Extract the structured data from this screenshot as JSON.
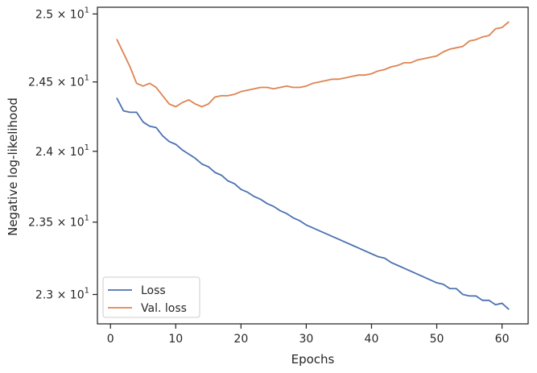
{
  "chart_data": {
    "type": "line",
    "xlabel": "Epochs",
    "ylabel": "Negative log-likelihood",
    "xlim": [
      -2.0,
      64.0
    ],
    "ylim": [
      22.8,
      25.05
    ],
    "y_scale": "log",
    "grid": false,
    "legend_position": "lower-left",
    "x_ticks": [
      0,
      10,
      20,
      30,
      40,
      50,
      60
    ],
    "x_tick_labels": [
      "0",
      "10",
      "20",
      "30",
      "40",
      "50",
      "60"
    ],
    "y_ticks": [
      {
        "value": 25.0,
        "mantissa": "2.5",
        "exponent": "1"
      },
      {
        "value": 24.5,
        "mantissa": "2.45",
        "exponent": "1"
      },
      {
        "value": 24.0,
        "mantissa": "2.4",
        "exponent": "1"
      },
      {
        "value": 23.5,
        "mantissa": "2.35",
        "exponent": "1"
      },
      {
        "value": 23.0,
        "mantissa": "2.3",
        "exponent": "1"
      }
    ],
    "y_tick_times": "×",
    "y_tick_base": "10",
    "x": [
      1,
      2,
      3,
      4,
      5,
      6,
      7,
      8,
      9,
      10,
      11,
      12,
      13,
      14,
      15,
      16,
      17,
      18,
      19,
      20,
      21,
      22,
      23,
      24,
      25,
      26,
      27,
      28,
      29,
      30,
      31,
      32,
      33,
      34,
      35,
      36,
      37,
      38,
      39,
      40,
      41,
      42,
      43,
      44,
      45,
      46,
      47,
      48,
      49,
      50,
      51,
      52,
      53,
      54,
      55,
      56,
      57,
      58,
      59,
      60,
      61
    ],
    "series": [
      {
        "name": "Loss",
        "color": "#4c72b0",
        "values": [
          24.38,
          24.29,
          24.28,
          24.28,
          24.21,
          24.18,
          24.17,
          24.11,
          24.07,
          24.05,
          24.01,
          23.98,
          23.95,
          23.91,
          23.89,
          23.85,
          23.83,
          23.79,
          23.77,
          23.73,
          23.71,
          23.68,
          23.66,
          23.63,
          23.61,
          23.58,
          23.56,
          23.53,
          23.51,
          23.48,
          23.46,
          23.44,
          23.42,
          23.4,
          23.38,
          23.36,
          23.34,
          23.32,
          23.3,
          23.28,
          23.26,
          23.25,
          23.22,
          23.2,
          23.18,
          23.16,
          23.14,
          23.12,
          23.1,
          23.08,
          23.07,
          23.04,
          23.04,
          23.0,
          22.99,
          22.99,
          22.96,
          22.96,
          22.93,
          22.94,
          22.9
        ]
      },
      {
        "name": "Val. loss",
        "color": "#dd8452",
        "values": [
          24.81,
          24.71,
          24.61,
          24.49,
          24.47,
          24.49,
          24.46,
          24.4,
          24.34,
          24.32,
          24.35,
          24.37,
          24.34,
          24.32,
          24.34,
          24.39,
          24.4,
          24.4,
          24.41,
          24.43,
          24.44,
          24.45,
          24.46,
          24.46,
          24.45,
          24.46,
          24.47,
          24.46,
          24.46,
          24.47,
          24.49,
          24.5,
          24.51,
          24.52,
          24.52,
          24.53,
          24.54,
          24.55,
          24.55,
          24.56,
          24.58,
          24.59,
          24.61,
          24.62,
          24.64,
          24.64,
          24.66,
          24.67,
          24.68,
          24.69,
          24.72,
          24.74,
          24.75,
          24.76,
          24.8,
          24.81,
          24.83,
          24.84,
          24.89,
          24.9,
          24.94
        ]
      }
    ]
  }
}
